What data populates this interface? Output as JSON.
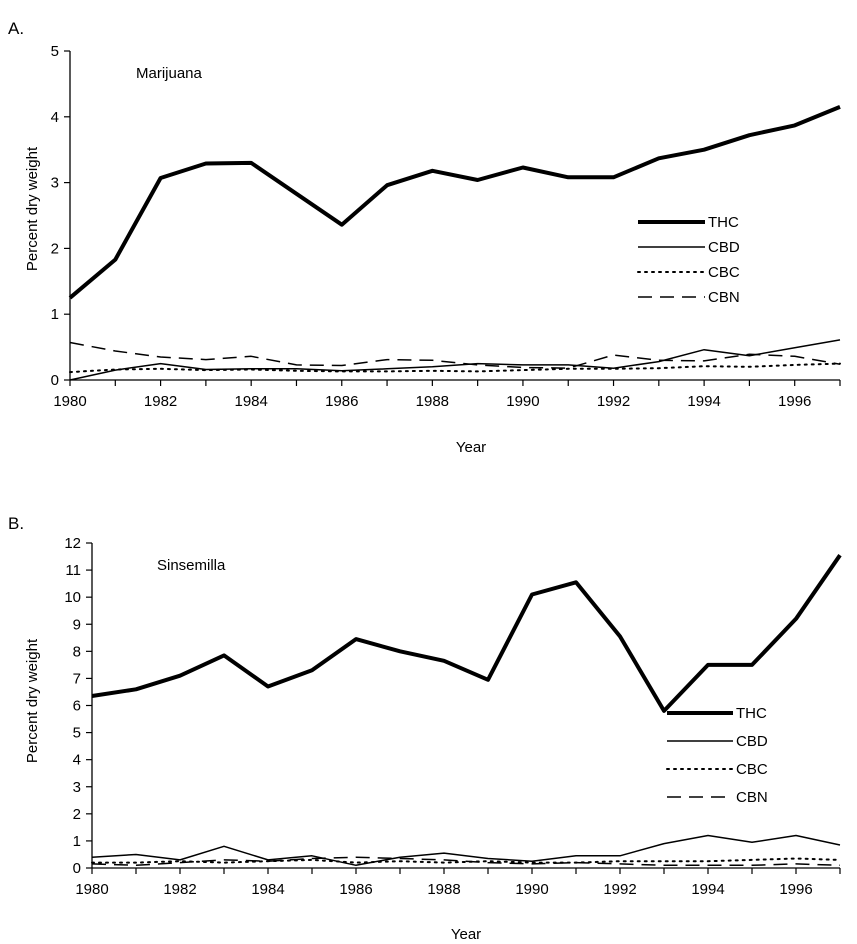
{
  "chart_data": [
    {
      "type": "line",
      "panel_label": "A.",
      "title": "Marijuana",
      "xlabel": "Year",
      "ylabel": "Percent dry weight",
      "xlim": [
        1980,
        1997
      ],
      "ylim": [
        0,
        5
      ],
      "x_ticks": [
        1980,
        1982,
        1984,
        1986,
        1988,
        1990,
        1992,
        1994,
        1996
      ],
      "y_ticks": [
        0,
        1,
        2,
        3,
        4,
        5
      ],
      "legend_position": "right",
      "x": [
        1980,
        1981,
        1982,
        1983,
        1984,
        1985,
        1986,
        1987,
        1988,
        1989,
        1990,
        1991,
        1992,
        1993,
        1994,
        1995,
        1996,
        1997
      ],
      "series": [
        {
          "name": "THC",
          "style": "thick-solid",
          "values": [
            1.25,
            1.83,
            3.07,
            3.29,
            3.3,
            2.83,
            2.36,
            2.96,
            3.18,
            3.04,
            3.23,
            3.08,
            3.08,
            3.37,
            3.5,
            3.72,
            3.87,
            4.15
          ]
        },
        {
          "name": "CBD",
          "style": "thin-solid",
          "values": [
            0.0,
            0.15,
            0.25,
            0.16,
            0.17,
            0.17,
            0.14,
            0.17,
            0.2,
            0.25,
            0.23,
            0.23,
            0.18,
            0.28,
            0.46,
            0.37,
            0.49,
            0.61
          ]
        },
        {
          "name": "CBC",
          "style": "dotted",
          "values": [
            0.12,
            0.16,
            0.17,
            0.15,
            0.16,
            0.14,
            0.13,
            0.13,
            0.14,
            0.13,
            0.15,
            0.17,
            0.17,
            0.18,
            0.21,
            0.2,
            0.23,
            0.25
          ]
        },
        {
          "name": "CBN",
          "style": "dashed",
          "values": [
            0.57,
            0.44,
            0.35,
            0.31,
            0.36,
            0.23,
            0.22,
            0.31,
            0.3,
            0.23,
            0.19,
            0.18,
            0.38,
            0.3,
            0.29,
            0.39,
            0.36,
            0.24
          ]
        }
      ]
    },
    {
      "type": "line",
      "panel_label": "B.",
      "title": "Sinsemilla",
      "xlabel": "Year",
      "ylabel": "Percent dry weight",
      "xlim": [
        1980,
        1997
      ],
      "ylim": [
        0,
        12
      ],
      "x_ticks": [
        1980,
        1982,
        1984,
        1986,
        1988,
        1990,
        1992,
        1994,
        1996
      ],
      "y_ticks": [
        0,
        1,
        2,
        3,
        4,
        5,
        6,
        7,
        8,
        9,
        10,
        11,
        12
      ],
      "legend_position": "right",
      "x": [
        1980,
        1981,
        1982,
        1983,
        1984,
        1985,
        1986,
        1987,
        1988,
        1989,
        1990,
        1991,
        1992,
        1993,
        1994,
        1995,
        1996,
        1997
      ],
      "series": [
        {
          "name": "THC",
          "style": "thick-solid",
          "values": [
            6.35,
            6.6,
            7.1,
            7.85,
            6.7,
            7.3,
            8.45,
            8.0,
            7.65,
            6.95,
            10.1,
            10.55,
            8.55,
            5.8,
            7.5,
            7.5,
            9.2,
            11.55
          ]
        },
        {
          "name": "CBD",
          "style": "thin-solid",
          "values": [
            0.4,
            0.5,
            0.3,
            0.8,
            0.3,
            0.45,
            0.1,
            0.4,
            0.55,
            0.35,
            0.25,
            0.45,
            0.45,
            0.9,
            1.2,
            0.95,
            1.2,
            0.85
          ]
        },
        {
          "name": "CBC",
          "style": "dotted",
          "values": [
            0.2,
            0.2,
            0.25,
            0.2,
            0.25,
            0.3,
            0.2,
            0.25,
            0.2,
            0.25,
            0.2,
            0.2,
            0.25,
            0.25,
            0.25,
            0.3,
            0.35,
            0.3
          ]
        },
        {
          "name": "CBN",
          "style": "dashed",
          "values": [
            0.15,
            0.1,
            0.2,
            0.3,
            0.25,
            0.35,
            0.4,
            0.35,
            0.3,
            0.2,
            0.15,
            0.2,
            0.15,
            0.1,
            0.1,
            0.1,
            0.15,
            0.1
          ]
        }
      ]
    }
  ]
}
